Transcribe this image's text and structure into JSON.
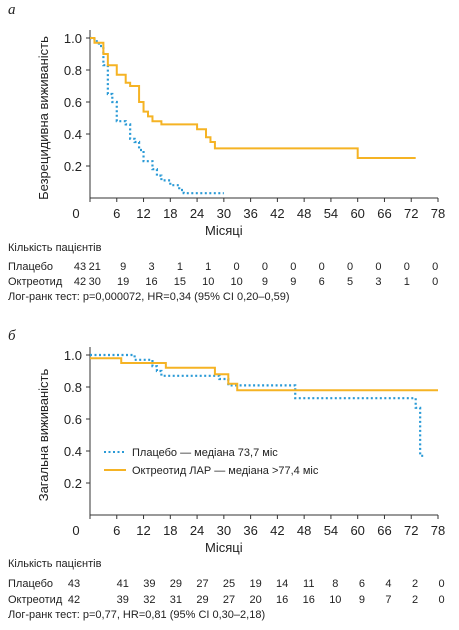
{
  "colors": {
    "placebo": "#2a9ad6",
    "octreotide": "#f5b324",
    "axis": "#333333"
  },
  "chart_data": [
    {
      "type": "line",
      "panel_label": "а",
      "ylabel": "Безрецидивна виживаність",
      "xlabel": "Місяці",
      "xlim": [
        0,
        78
      ],
      "ylim": [
        0,
        1.0
      ],
      "x_ticks": [
        "0",
        "6",
        "12",
        "18",
        "24",
        "30",
        "36",
        "42",
        "48",
        "54",
        "60",
        "66",
        "72",
        "78"
      ],
      "y_ticks": [
        "1.0",
        "0.8",
        "0.6",
        "0.4",
        "0.2"
      ],
      "series": [
        {
          "key": "placebo",
          "line_style": "dotted",
          "points": [
            [
              0,
              1.0
            ],
            [
              1,
              0.98
            ],
            [
              2,
              0.95
            ],
            [
              3,
              0.83
            ],
            [
              4,
              0.65
            ],
            [
              5,
              0.6
            ],
            [
              6,
              0.48
            ],
            [
              8,
              0.46
            ],
            [
              9,
              0.37
            ],
            [
              10,
              0.35
            ],
            [
              11,
              0.3
            ],
            [
              12,
              0.23
            ],
            [
              14,
              0.18
            ],
            [
              15,
              0.14
            ],
            [
              16,
              0.11
            ],
            [
              18,
              0.08
            ],
            [
              20,
              0.05
            ],
            [
              21,
              0.03
            ],
            [
              30,
              0.03
            ]
          ]
        },
        {
          "key": "octreotide",
          "line_style": "solid",
          "points": [
            [
              0,
              1.0
            ],
            [
              1,
              0.97
            ],
            [
              3,
              0.9
            ],
            [
              4,
              0.83
            ],
            [
              6,
              0.77
            ],
            [
              8,
              0.72
            ],
            [
              9,
              0.7
            ],
            [
              11,
              0.6
            ],
            [
              12,
              0.54
            ],
            [
              13,
              0.51
            ],
            [
              14,
              0.48
            ],
            [
              16,
              0.46
            ],
            [
              24,
              0.43
            ],
            [
              26,
              0.38
            ],
            [
              27,
              0.35
            ],
            [
              28,
              0.31
            ],
            [
              60,
              0.31
            ],
            [
              60,
              0.25
            ],
            [
              73,
              0.25
            ]
          ]
        }
      ],
      "risk_table": {
        "title": "Кількість пацієнтів",
        "rows": [
          {
            "label": "Плацебо",
            "n": "43",
            "values": [
              "21",
              "9",
              "3",
              "1",
              "1",
              "0",
              "0",
              "0",
              "0",
              "0",
              "0",
              "0",
              "0"
            ]
          },
          {
            "label": "Октреотид",
            "n": "42",
            "values": [
              "30",
              "19",
              "16",
              "15",
              "10",
              "10",
              "9",
              "9",
              "6",
              "5",
              "3",
              "1",
              "0"
            ]
          }
        ]
      },
      "footnote": "Лог-ранк тест: p=0,000072, HR=0,34 (95% CI 0,20–0,59)"
    },
    {
      "type": "line",
      "panel_label": "б",
      "ylabel": "Загальна виживаність",
      "xlabel": "Місяці",
      "xlim": [
        0,
        78
      ],
      "ylim": [
        0,
        1.0
      ],
      "x_ticks": [
        "0",
        "6",
        "12",
        "18",
        "24",
        "30",
        "36",
        "42",
        "48",
        "54",
        "60",
        "66",
        "72",
        "78"
      ],
      "y_ticks": [
        "1.0",
        "0.8",
        "0.6",
        "0.4",
        "0.2"
      ],
      "series": [
        {
          "key": "placebo",
          "name": "Плацебо — медіана 73,7 міс",
          "line_style": "dotted",
          "points": [
            [
              0,
              1.0
            ],
            [
              10,
              0.97
            ],
            [
              14,
              0.93
            ],
            [
              15,
              0.9
            ],
            [
              16,
              0.87
            ],
            [
              29,
              0.85
            ],
            [
              31,
              0.81
            ],
            [
              46,
              0.81
            ],
            [
              46,
              0.73
            ],
            [
              73,
              0.73
            ],
            [
              73,
              0.67
            ],
            [
              74,
              0.37
            ],
            [
              75,
              0.37
            ]
          ]
        },
        {
          "key": "octreotide",
          "name": "Октреотид ЛАР — медіана >77,4 міс",
          "line_style": "solid",
          "points": [
            [
              0,
              0.98
            ],
            [
              1,
              0.98
            ],
            [
              7,
              0.95
            ],
            [
              17,
              0.92
            ],
            [
              28,
              0.88
            ],
            [
              31,
              0.82
            ],
            [
              33,
              0.78
            ],
            [
              78,
              0.78
            ]
          ]
        }
      ],
      "risk_table": {
        "title": "Кількість пацієнтів",
        "rows": [
          {
            "label": "Плацебо",
            "n": "43",
            "values": [
              "41",
              "39",
              "29",
              "27",
              "25",
              "19",
              "14",
              "11",
              "8",
              "6",
              "4",
              "2",
              "0"
            ]
          },
          {
            "label": "Октреотид",
            "n": "42",
            "values": [
              "39",
              "32",
              "31",
              "29",
              "27",
              "20",
              "16",
              "16",
              "10",
              "9",
              "7",
              "2",
              "0"
            ]
          }
        ]
      },
      "footnote": "Лог-ранк тест: p=0,77, HR=0,81 (95% CI 0,30–2,18)"
    }
  ]
}
